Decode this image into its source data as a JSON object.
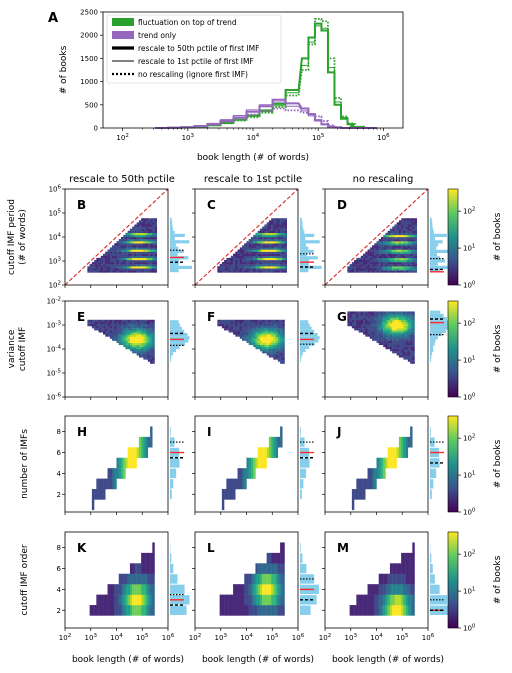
{
  "panel_letters": [
    "A",
    "B",
    "C",
    "D",
    "E",
    "F",
    "G",
    "H",
    "I",
    "J",
    "K",
    "L",
    "M"
  ],
  "column_titles": [
    "rescale to 50th pctile",
    "rescale to 1st pctile",
    "no rescaling"
  ],
  "row_ylabels": [
    [
      "cutoff IMF period",
      "(# of words)"
    ],
    [
      "variance",
      "cutoff IMF"
    ],
    [
      "number of IMFs"
    ],
    [
      "cutoff IMF order"
    ]
  ],
  "xlabel": "book length (# of words)",
  "colorbar_label": "# of books",
  "colors": {
    "green": "#2ca02c",
    "purple": "#9467bd",
    "red_dashed": "#d62728",
    "median_red": "#ff2a2a",
    "marginal_blue": "#87ceeb"
  },
  "chart_data": [
    {
      "panel": "A",
      "type": "line",
      "ylabel": "# of books",
      "xlabel": "book length (# of words)",
      "xscale": "log",
      "xlim": [
        50,
        2000000
      ],
      "ylim": [
        0,
        2500
      ],
      "x_ticks": [
        "10^2",
        "10^3",
        "10^4",
        "10^5",
        "10^6"
      ],
      "y_ticks": [
        "0",
        "500",
        "1000",
        "1500",
        "2000",
        "2500"
      ],
      "legend": {
        "placement": "top-left",
        "entries": [
          "fluctuation on top of trend",
          "trend only",
          "rescale to 50th pctile of first IMF",
          "rescale to 1st pctile of first IMF",
          "no rescaling (ignore first IMF)"
        ]
      },
      "log10_bin_centers": [
        2.6,
        2.8,
        3.0,
        3.2,
        3.4,
        3.6,
        3.8,
        4.0,
        4.2,
        4.4,
        4.6,
        4.8,
        4.9,
        5.0,
        5.1,
        5.2,
        5.3,
        5.4,
        5.5,
        5.6,
        5.8
      ],
      "series": [
        {
          "name": "fluctuation on top of trend",
          "style": "50th",
          "color": "#2ca02c",
          "values": [
            0,
            5,
            15,
            30,
            60,
            110,
            180,
            270,
            380,
            520,
            820,
            1500,
            1950,
            2250,
            2100,
            1200,
            500,
            200,
            80,
            20,
            0
          ]
        },
        {
          "name": "fluctuation on top of trend",
          "style": "1st",
          "color": "#2ca02c",
          "values": [
            0,
            5,
            15,
            30,
            60,
            100,
            170,
            250,
            350,
            480,
            760,
            1350,
            1850,
            2200,
            2150,
            1300,
            560,
            230,
            90,
            25,
            0
          ]
        },
        {
          "name": "fluctuation on top of trend",
          "style": "none",
          "color": "#2ca02c",
          "values": [
            0,
            5,
            15,
            30,
            60,
            100,
            160,
            230,
            330,
            450,
            700,
            1250,
            1800,
            2350,
            2300,
            1500,
            650,
            250,
            100,
            30,
            0
          ]
        },
        {
          "name": "trend only",
          "style": "50th",
          "color": "#9467bd",
          "values": [
            0,
            5,
            15,
            40,
            80,
            150,
            230,
            350,
            470,
            610,
            530,
            420,
            300,
            170,
            80,
            30,
            10,
            0,
            0,
            0,
            0
          ]
        },
        {
          "name": "trend only",
          "style": "1st",
          "color": "#9467bd",
          "values": [
            0,
            5,
            20,
            50,
            100,
            180,
            270,
            390,
            500,
            560,
            470,
            370,
            260,
            150,
            70,
            25,
            8,
            0,
            0,
            0,
            0
          ]
        },
        {
          "name": "trend only",
          "style": "none",
          "color": "#9467bd",
          "values": [
            0,
            5,
            15,
            40,
            80,
            140,
            200,
            290,
            370,
            420,
            380,
            330,
            300,
            250,
            150,
            60,
            20,
            0,
            0,
            0,
            0
          ]
        }
      ]
    },
    {
      "panel": "B-M",
      "type": "heatmap",
      "colormap": "viridis",
      "colorbar_scale": "log",
      "colorbar_ticks": [
        "10^0",
        "10^1",
        "10^2"
      ],
      "x_ticks": [
        "10^2",
        "10^3",
        "10^4",
        "10^5",
        "10^6"
      ],
      "rows": [
        {
          "ylabel": "cutoff IMF period (# of words)",
          "yscale": "log",
          "y_ticks": [
            "10^2",
            "10^3",
            "10^4",
            "10^5",
            "10^6"
          ],
          "diagonal": "red dashed y=x",
          "median_log10_y": [
            3.15,
            2.95,
            2.55
          ],
          "pctl_log10_y": [
            [
              2.95,
              3.45
            ],
            [
              2.75,
              3.3
            ],
            [
              2.65,
              3.1
            ]
          ]
        },
        {
          "ylabel": "variance cutoff IMF",
          "yscale": "log",
          "y_ticks": [
            "10^-6",
            "10^-5",
            "10^-4",
            "10^-3",
            "10^-2"
          ],
          "median_log10_y": [
            -3.6,
            -3.6,
            -2.9
          ],
          "pctl_log10_y": [
            [
              -3.35,
              -3.85
            ],
            [
              -3.35,
              -3.8
            ],
            [
              -2.75,
              -3.4
            ]
          ]
        },
        {
          "ylabel": "number of IMFs",
          "yscale": "linear",
          "y_ticks": [
            "2",
            "4",
            "6",
            "8"
          ],
          "median_y": [
            6,
            6,
            6
          ],
          "pctl_y": [
            [
              5.5,
              7
            ],
            [
              5.5,
              7
            ],
            [
              5,
              7
            ]
          ]
        },
        {
          "ylabel": "cutoff IMF order",
          "yscale": "linear",
          "y_ticks": [
            "2",
            "4",
            "6",
            "8"
          ],
          "median_y": [
            3,
            4,
            2
          ],
          "pctl_y": [
            [
              2.5,
              3.5
            ],
            [
              3,
              5
            ],
            [
              2,
              3
            ]
          ]
        }
      ]
    }
  ]
}
